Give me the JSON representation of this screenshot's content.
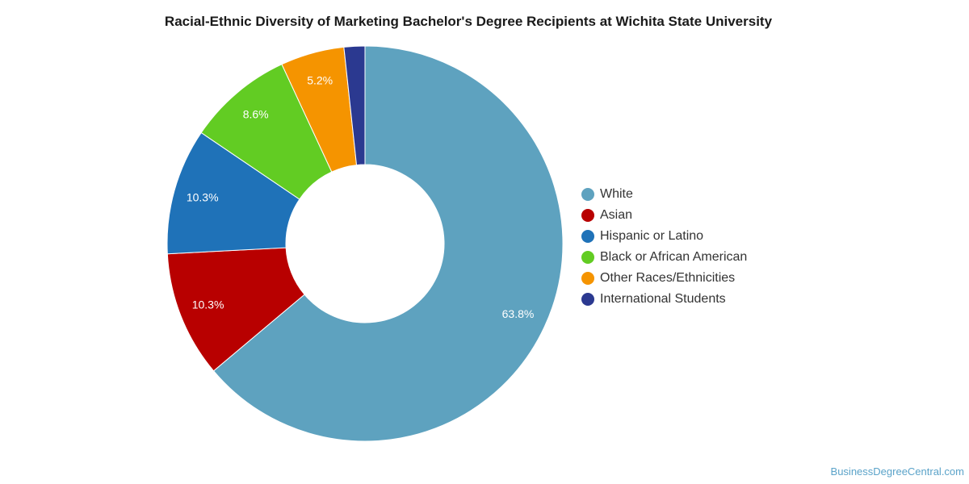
{
  "chart_data": {
    "type": "pie",
    "title": "Racial-Ethnic Diversity of Marketing Bachelor's Degree Recipients at Wichita State University",
    "legend_position": "right",
    "donut": true,
    "slices": [
      {
        "name": "White",
        "value": 63.8,
        "label": "63.8%",
        "color": "#5ea2bf"
      },
      {
        "name": "Asian",
        "value": 10.3,
        "label": "10.3%",
        "color": "#b80000"
      },
      {
        "name": "Hispanic or Latino",
        "value": 10.3,
        "label": "10.3%",
        "color": "#1f72b8"
      },
      {
        "name": "Black or African American",
        "value": 8.6,
        "label": "8.6%",
        "color": "#62cc23"
      },
      {
        "name": "Other Races/Ethnicities",
        "value": 5.2,
        "label": "5.2%",
        "color": "#f59400"
      },
      {
        "name": "International Students",
        "value": 1.7,
        "label": "",
        "color": "#2b3990"
      }
    ]
  },
  "footer": {
    "credit": "BusinessDegreeCentral.com"
  }
}
